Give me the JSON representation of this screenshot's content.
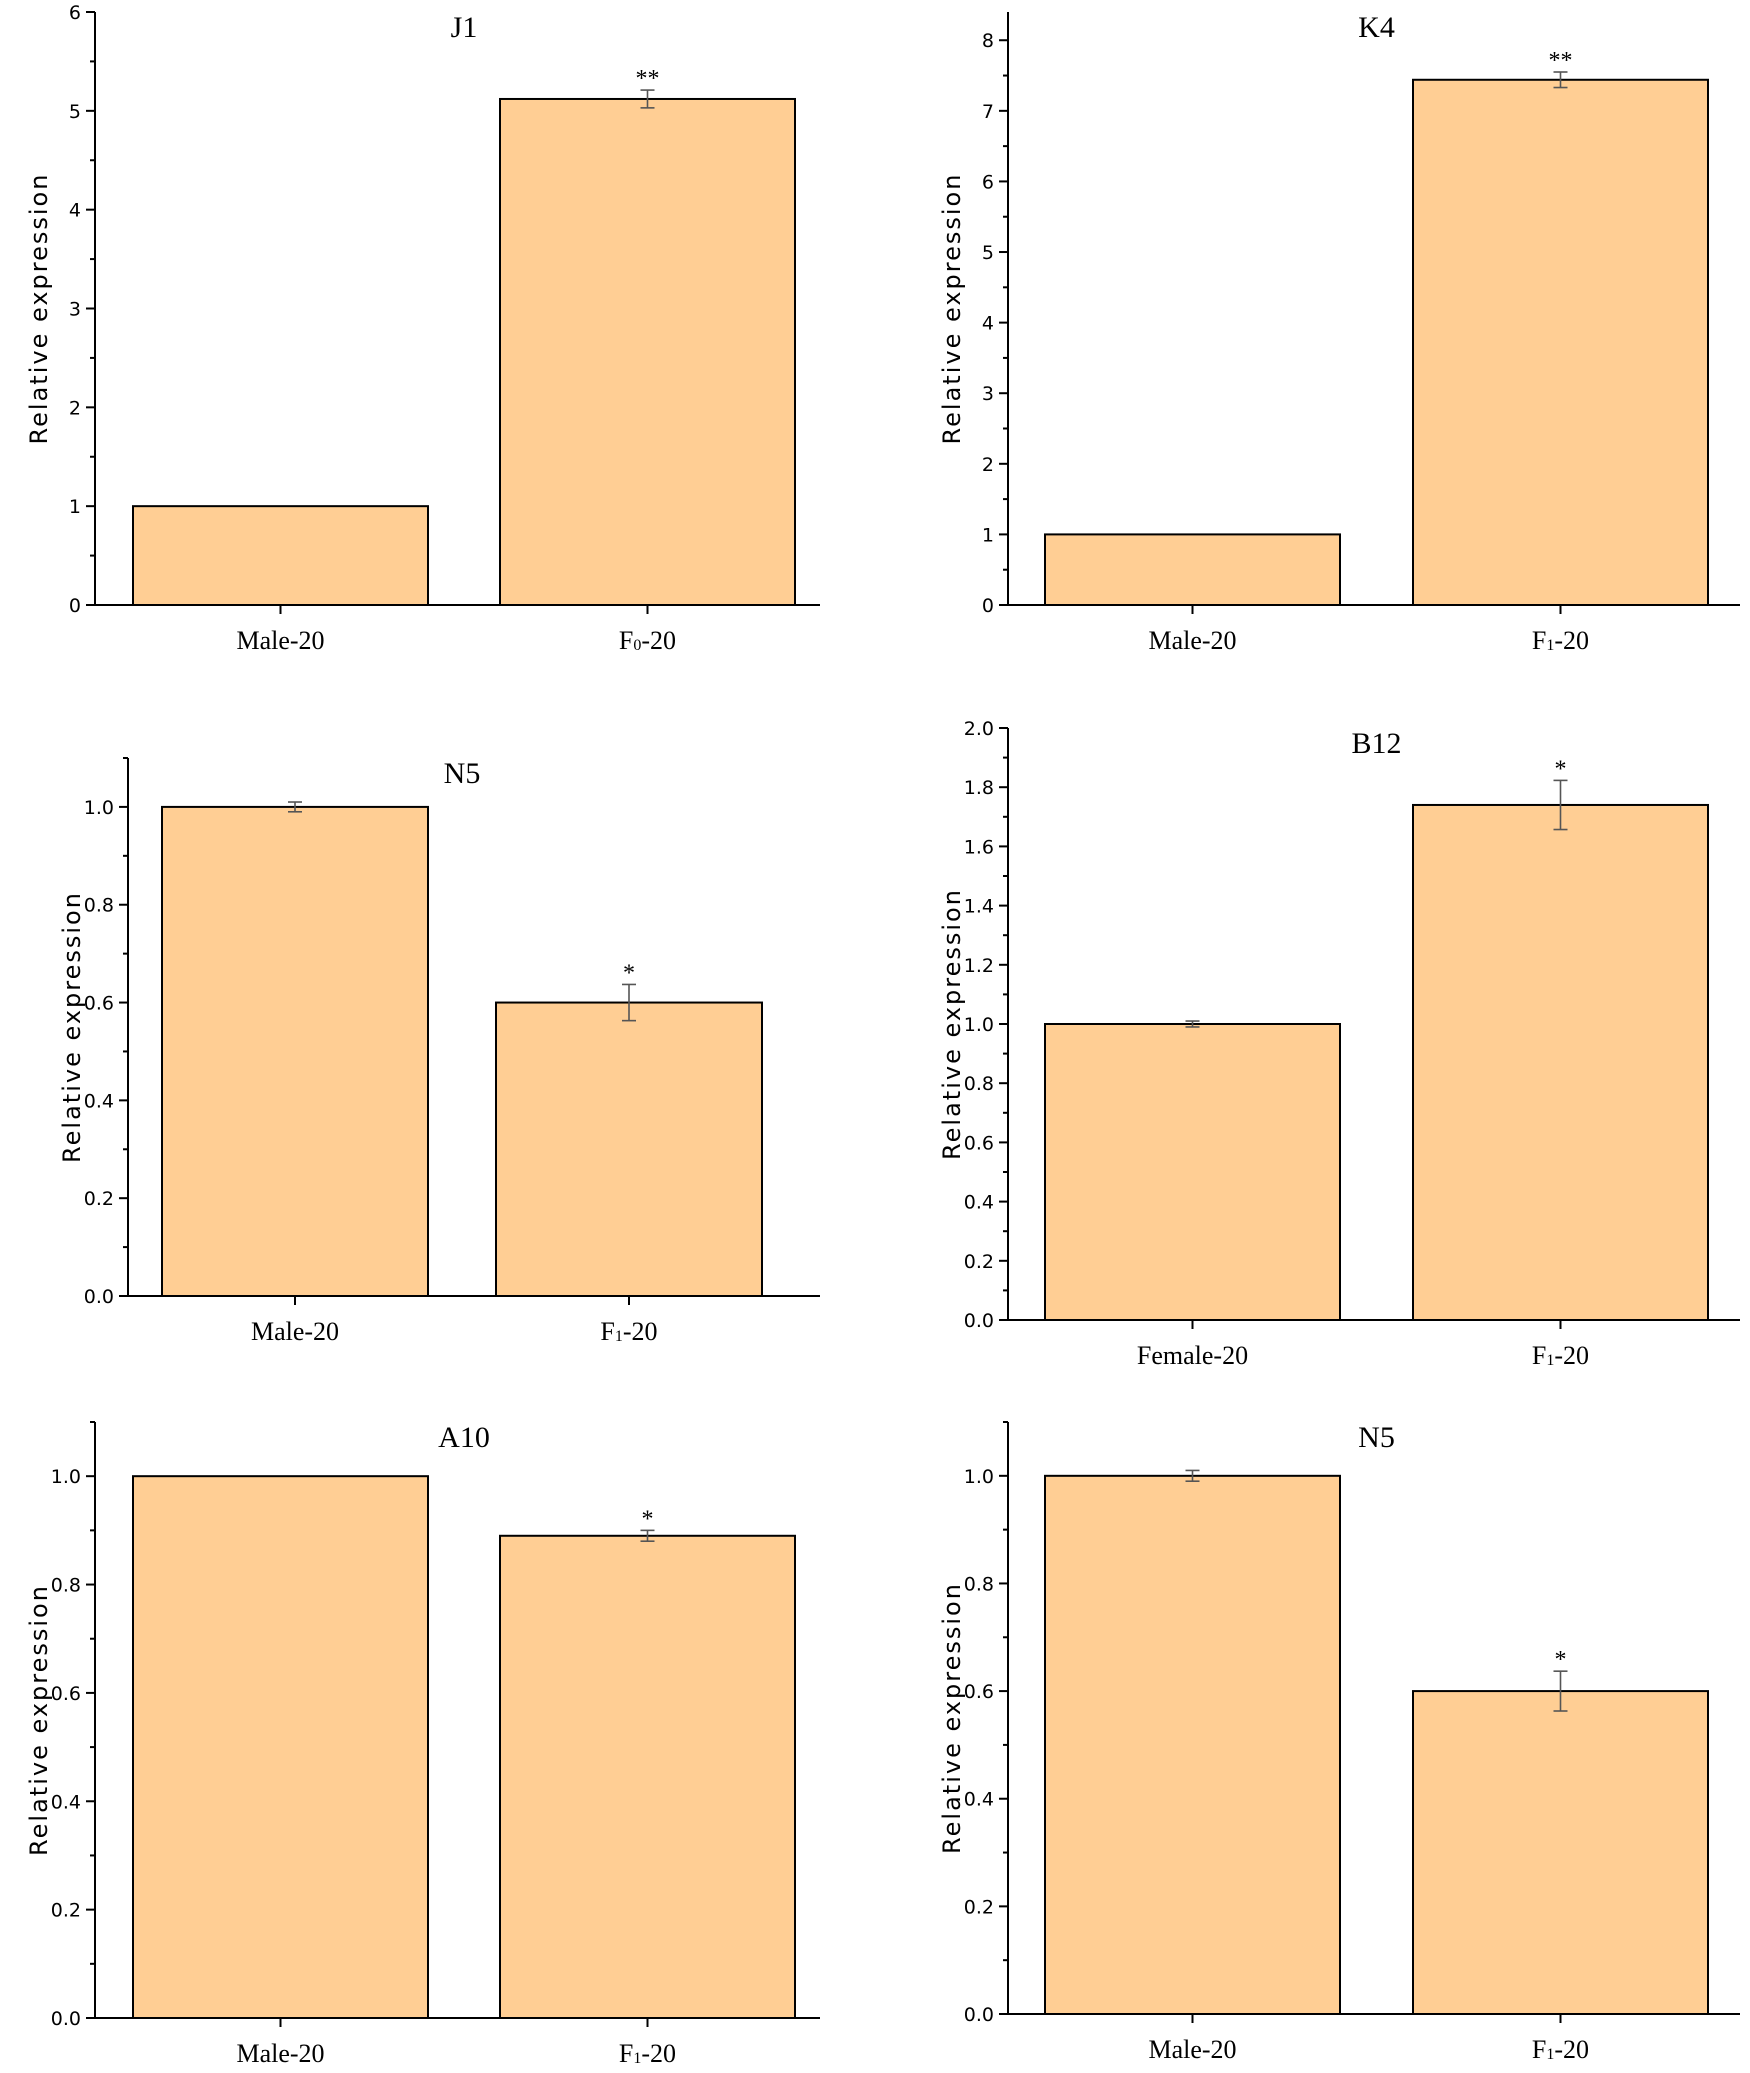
{
  "colors": {
    "bar_fill": "#FFCE94",
    "bar_stroke": "#000000",
    "error": "#555555"
  },
  "chart_data": [
    {
      "type": "bar",
      "title": "J1",
      "ylabel": "Relative expression",
      "ylim": [
        0,
        6
      ],
      "yticks": [
        "0",
        "1",
        "2",
        "3",
        "4",
        "5",
        "6"
      ],
      "categories": [
        {
          "base": "Male-20",
          "sub": ""
        },
        {
          "base": "F",
          "sub": "0",
          "suffix": "-20"
        }
      ],
      "values": [
        1.0,
        5.12
      ],
      "errors": [
        0.0,
        0.09
      ],
      "significance": [
        "",
        "**"
      ]
    },
    {
      "type": "bar",
      "title": "K4",
      "ylabel": "Relative expression",
      "ylim": [
        0,
        8.4
      ],
      "yticks": [
        "0",
        "1",
        "2",
        "3",
        "4",
        "5",
        "6",
        "7",
        "8"
      ],
      "categories": [
        {
          "base": "Male-20",
          "sub": ""
        },
        {
          "base": "F",
          "sub": "1",
          "suffix": "-20"
        }
      ],
      "values": [
        1.0,
        7.44
      ],
      "errors": [
        0.0,
        0.11
      ],
      "significance": [
        "",
        "**"
      ]
    },
    {
      "type": "bar",
      "title": "N5",
      "ylabel": "Relative expression",
      "ylim": [
        0,
        1.1
      ],
      "yticks": [
        "0.0",
        "0.2",
        "0.4",
        "0.6",
        "0.8",
        "1.0"
      ],
      "categories": [
        {
          "base": "Male-20",
          "sub": ""
        },
        {
          "base": "F",
          "sub": "1",
          "suffix": "-20"
        }
      ],
      "values": [
        1.0,
        0.6
      ],
      "errors": [
        0.01,
        0.037
      ],
      "significance": [
        "",
        "*"
      ]
    },
    {
      "type": "bar",
      "title": "B12",
      "ylabel": "Relative expression",
      "ylim": [
        0,
        2.0
      ],
      "yticks": [
        "0.0",
        "0.2",
        "0.4",
        "0.6",
        "0.8",
        "1.0",
        "1.2",
        "1.4",
        "1.6",
        "1.8",
        "2.0"
      ],
      "categories": [
        {
          "base": "Female-20",
          "sub": ""
        },
        {
          "base": "F",
          "sub": "1",
          "suffix": "-20"
        }
      ],
      "values": [
        1.0,
        1.74
      ],
      "errors": [
        0.01,
        0.083
      ],
      "significance": [
        "",
        "*"
      ]
    },
    {
      "type": "bar",
      "title": "A10",
      "ylabel": "Relative expression",
      "ylim": [
        0,
        1.1
      ],
      "yticks": [
        "0.0",
        "0.2",
        "0.4",
        "0.6",
        "0.8",
        "1.0"
      ],
      "categories": [
        {
          "base": "Male-20",
          "sub": ""
        },
        {
          "base": "F",
          "sub": "1",
          "suffix": "-20"
        }
      ],
      "values": [
        1.0,
        0.89
      ],
      "errors": [
        0.0,
        0.01
      ],
      "significance": [
        "",
        "*"
      ]
    },
    {
      "type": "bar",
      "title": "N5",
      "ylabel": "Relative expression",
      "ylim": [
        0,
        1.1
      ],
      "yticks": [
        "0.0",
        "0.2",
        "0.4",
        "0.6",
        "0.8",
        "1.0"
      ],
      "categories": [
        {
          "base": "Male-20",
          "sub": ""
        },
        {
          "base": "F",
          "sub": "1",
          "suffix": "-20"
        }
      ],
      "values": [
        1.0,
        0.6
      ],
      "errors": [
        0.01,
        0.037
      ],
      "significance": [
        "",
        "*"
      ]
    }
  ]
}
